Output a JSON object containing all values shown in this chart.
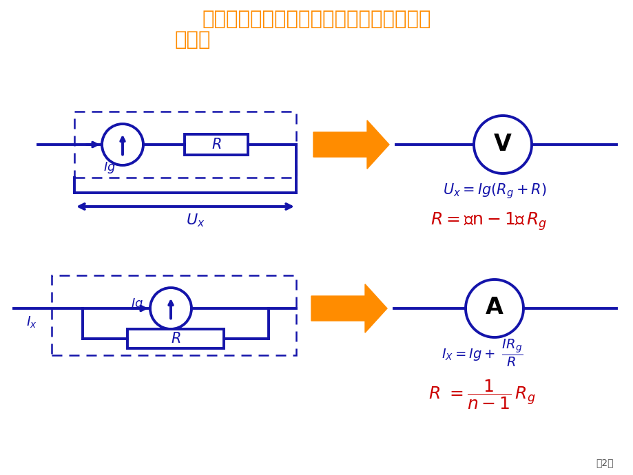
{
  "title_line1": "一、回顾：将电流表改装成电压表和大量程",
  "title_line2": "电流表",
  "title_color": "#FF8C00",
  "bg_color": "#FFFFFF",
  "blue_color": "#1414AA",
  "dark_blue": "#1414AA",
  "orange_color": "#FF8C00",
  "red_color": "#CC0000",
  "page_label": "第2页"
}
